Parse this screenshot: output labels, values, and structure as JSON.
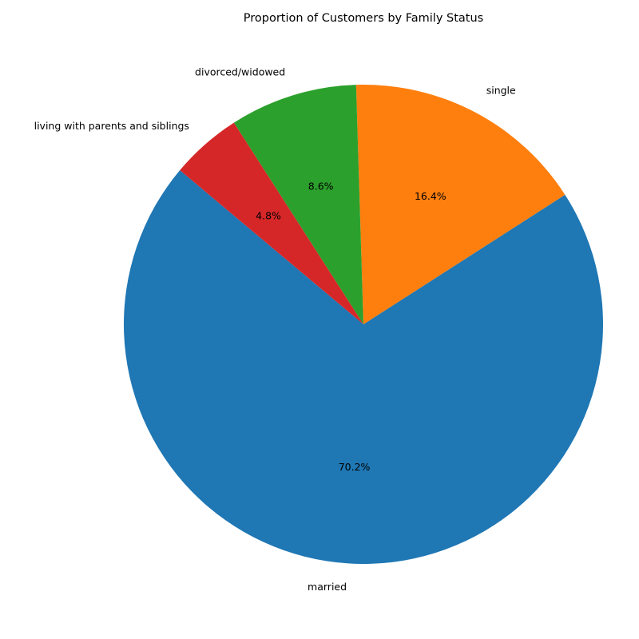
{
  "chart_data": {
    "type": "pie",
    "title": "Proportion of Customers by Family Status",
    "start_angle_deg": 140,
    "direction": "counterclockwise",
    "slices": [
      {
        "label": "married",
        "value": 70.2,
        "pct_label": "70.2%",
        "color": "#1f77b4"
      },
      {
        "label": "single",
        "value": 16.4,
        "pct_label": "16.4%",
        "color": "#ff7f0e"
      },
      {
        "label": "divorced/widowed",
        "value": 8.6,
        "pct_label": "8.6%",
        "color": "#2ca02c"
      },
      {
        "label": "living with parents and siblings",
        "value": 4.8,
        "pct_label": "4.8%",
        "color": "#d62728"
      }
    ]
  }
}
